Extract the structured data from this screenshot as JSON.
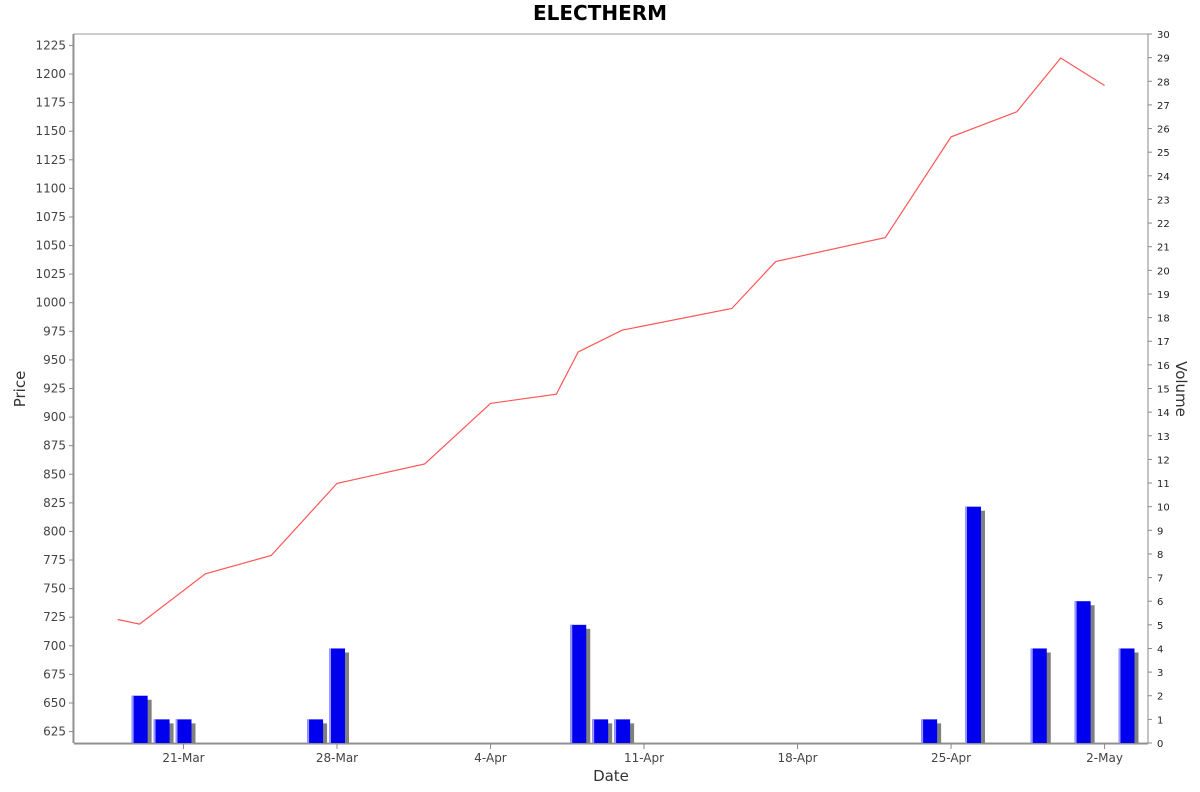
{
  "chart_data": {
    "type": "line+bar",
    "title": "ELECTHERM",
    "xlabel": "Date",
    "ylabel": "Price",
    "y2label": "Volume",
    "x_tick_labels": [
      {
        "date": "2024-03-21",
        "label": "21-Mar"
      },
      {
        "date": "2024-03-28",
        "label": "28-Mar"
      },
      {
        "date": "2024-04-04",
        "label": "4-Apr"
      },
      {
        "date": "2024-04-11",
        "label": "11-Apr"
      },
      {
        "date": "2024-04-18",
        "label": "18-Apr"
      },
      {
        "date": "2024-04-25",
        "label": "25-Apr"
      },
      {
        "date": "2024-05-02",
        "label": "2-May"
      }
    ],
    "price_ylim": [
      615,
      1235
    ],
    "price_ticks": [
      625,
      650,
      675,
      700,
      725,
      750,
      775,
      800,
      825,
      850,
      875,
      900,
      925,
      950,
      975,
      1000,
      1025,
      1050,
      1075,
      1100,
      1125,
      1150,
      1175,
      1200,
      1225
    ],
    "volume_ylim": [
      0,
      30
    ],
    "volume_ticks": [
      0,
      1,
      2,
      3,
      4,
      5,
      6,
      7,
      8,
      9,
      10,
      11,
      12,
      13,
      14,
      15,
      16,
      17,
      18,
      19,
      20,
      21,
      22,
      23,
      24,
      25,
      26,
      27,
      28,
      29,
      30
    ],
    "price_series": [
      {
        "date": "2024-03-18",
        "value": 723
      },
      {
        "date": "2024-03-19",
        "value": 719
      },
      {
        "date": "2024-03-22",
        "value": 763
      },
      {
        "date": "2024-03-25",
        "value": 779
      },
      {
        "date": "2024-03-28",
        "value": 842
      },
      {
        "date": "2024-04-01",
        "value": 859
      },
      {
        "date": "2024-04-04",
        "value": 912
      },
      {
        "date": "2024-04-07",
        "value": 920
      },
      {
        "date": "2024-04-08",
        "value": 957
      },
      {
        "date": "2024-04-10",
        "value": 976
      },
      {
        "date": "2024-04-15",
        "value": 995
      },
      {
        "date": "2024-04-17",
        "value": 1036
      },
      {
        "date": "2024-04-22",
        "value": 1057
      },
      {
        "date": "2024-04-25",
        "value": 1145
      },
      {
        "date": "2024-04-28",
        "value": 1167
      },
      {
        "date": "2024-04-30",
        "value": 1214
      },
      {
        "date": "2024-05-02",
        "value": 1190
      }
    ],
    "volume_series": [
      {
        "date": "2024-03-19",
        "value": 2
      },
      {
        "date": "2024-03-20",
        "value": 1
      },
      {
        "date": "2024-03-21",
        "value": 1
      },
      {
        "date": "2024-03-27",
        "value": 1
      },
      {
        "date": "2024-03-28",
        "value": 4
      },
      {
        "date": "2024-04-08",
        "value": 5
      },
      {
        "date": "2024-04-09",
        "value": 1
      },
      {
        "date": "2024-04-10",
        "value": 1
      },
      {
        "date": "2024-04-24",
        "value": 1
      },
      {
        "date": "2024-04-26",
        "value": 10
      },
      {
        "date": "2024-04-29",
        "value": 4
      },
      {
        "date": "2024-05-01",
        "value": 6
      },
      {
        "date": "2024-05-03",
        "value": 4
      }
    ],
    "colors": {
      "price_line": "#ff5555",
      "volume_bar": "#0000ee",
      "volume_shadow": "#808080",
      "axis": "#888888"
    },
    "grid": false,
    "legend": "none"
  }
}
